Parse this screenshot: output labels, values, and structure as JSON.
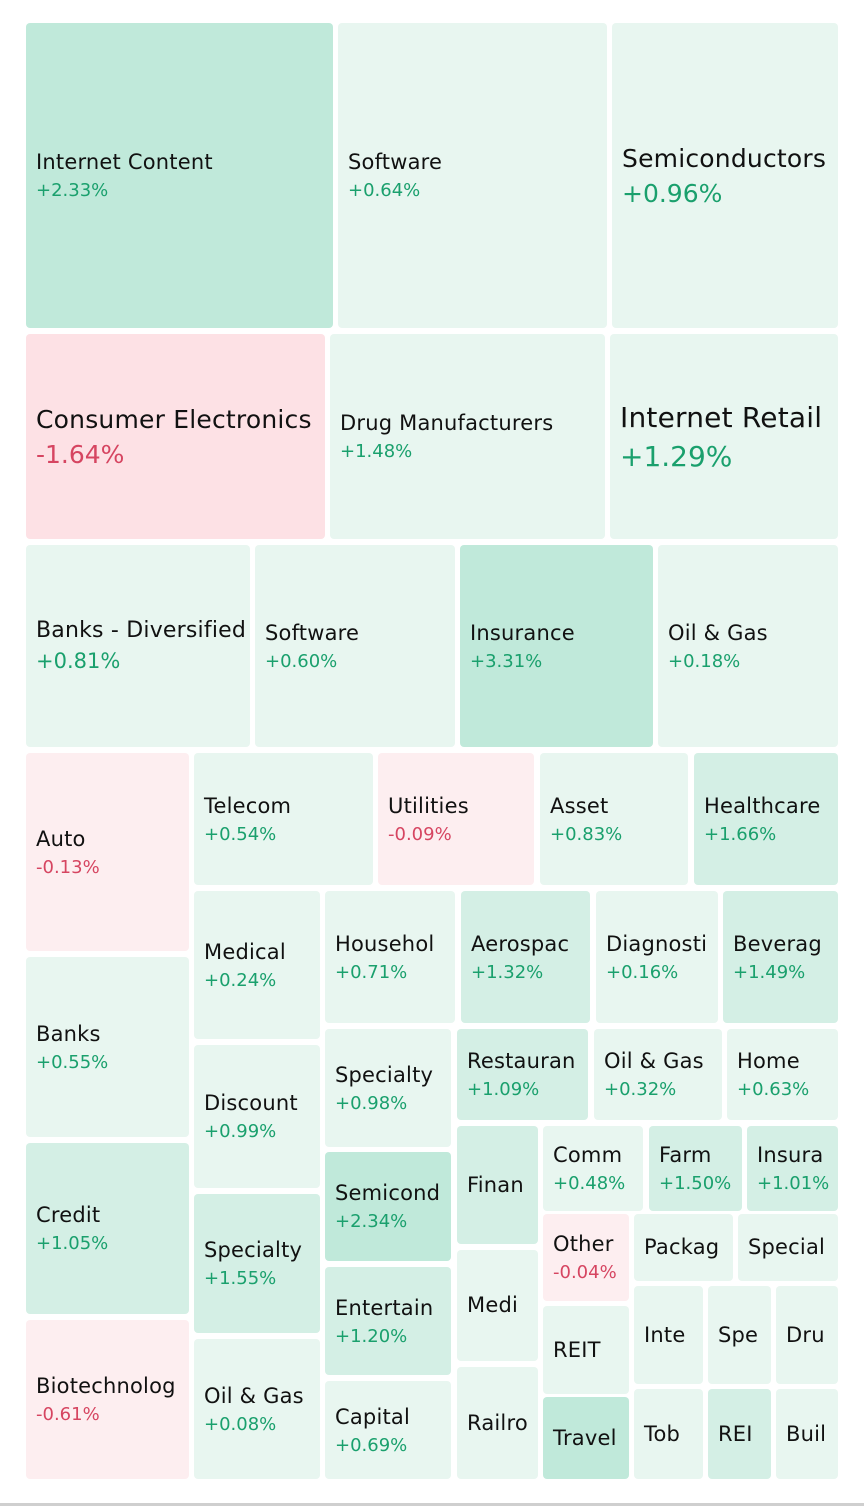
{
  "chart_data": {
    "type": "treemap",
    "colors": {
      "pos_strong": "#c0e9da",
      "pos_mid": "#d4efe5",
      "pos_light": "#e8f6f0",
      "neg_strong": "#fde1e5",
      "neg_light": "#fdeef0",
      "pos_text": "#1aa06d",
      "neg_text": "#d64561"
    },
    "tiles": [
      {
        "name": "Internet Content",
        "change": "+2.33%"
      },
      {
        "name": "Software",
        "change": "+0.64%"
      },
      {
        "name": "Semiconductors",
        "change": "+0.96%"
      },
      {
        "name": "Consumer Electronics",
        "change": "-1.64%"
      },
      {
        "name": "Drug Manufacturers",
        "change": "+1.48%"
      },
      {
        "name": "Internet Retail",
        "change": "+1.29%"
      },
      {
        "name": "Banks - Diversified",
        "change": "+0.81%"
      },
      {
        "name": "Software",
        "change": "+0.60%"
      },
      {
        "name": "Insurance",
        "change": "+3.31%"
      },
      {
        "name": "Oil & Gas",
        "change": "+0.18%"
      },
      {
        "name": "Auto",
        "change": "-0.13%"
      },
      {
        "name": "Telecom",
        "change": "+0.54%"
      },
      {
        "name": "Utilities",
        "change": "-0.09%"
      },
      {
        "name": "Asset",
        "change": "+0.83%"
      },
      {
        "name": "Healthcare",
        "change": "+1.66%"
      },
      {
        "name": "Banks",
        "change": "+0.55%"
      },
      {
        "name": "Medical",
        "change": "+0.24%"
      },
      {
        "name": "Househol",
        "change": "+0.71%"
      },
      {
        "name": "Aerospac",
        "change": "+1.32%"
      },
      {
        "name": "Diagnosti",
        "change": "+0.16%"
      },
      {
        "name": "Beverag",
        "change": "+1.49%"
      },
      {
        "name": "Discount",
        "change": "+0.99%"
      },
      {
        "name": "Specialty",
        "change": "+0.98%"
      },
      {
        "name": "Restauran",
        "change": "+1.09%"
      },
      {
        "name": "Oil & Gas",
        "change": "+0.32%"
      },
      {
        "name": "Home",
        "change": "+0.63%"
      },
      {
        "name": "Credit",
        "change": "+1.05%"
      },
      {
        "name": "Specialty",
        "change": "+1.55%"
      },
      {
        "name": "Semicond",
        "change": "+2.34%"
      },
      {
        "name": "Finan",
        "change": ""
      },
      {
        "name": "Comm",
        "change": "+0.48%"
      },
      {
        "name": "Farm",
        "change": "+1.50%"
      },
      {
        "name": "Insura",
        "change": "+1.01%"
      },
      {
        "name": "Other",
        "change": "-0.04%"
      },
      {
        "name": "Packag",
        "change": ""
      },
      {
        "name": "Special",
        "change": ""
      },
      {
        "name": "Entertain",
        "change": "+1.20%"
      },
      {
        "name": "Medi",
        "change": ""
      },
      {
        "name": "REIT",
        "change": ""
      },
      {
        "name": "Inte",
        "change": ""
      },
      {
        "name": "Spe",
        "change": ""
      },
      {
        "name": "Dru",
        "change": ""
      },
      {
        "name": "Biotechnolog",
        "change": "-0.61%"
      },
      {
        "name": "Oil & Gas",
        "change": "+0.08%"
      },
      {
        "name": "Capital",
        "change": "+0.69%"
      },
      {
        "name": "Railro",
        "change": ""
      },
      {
        "name": "Travel",
        "change": ""
      },
      {
        "name": "Tob",
        "change": ""
      },
      {
        "name": "REI",
        "change": ""
      },
      {
        "name": "Buil",
        "change": ""
      }
    ]
  }
}
